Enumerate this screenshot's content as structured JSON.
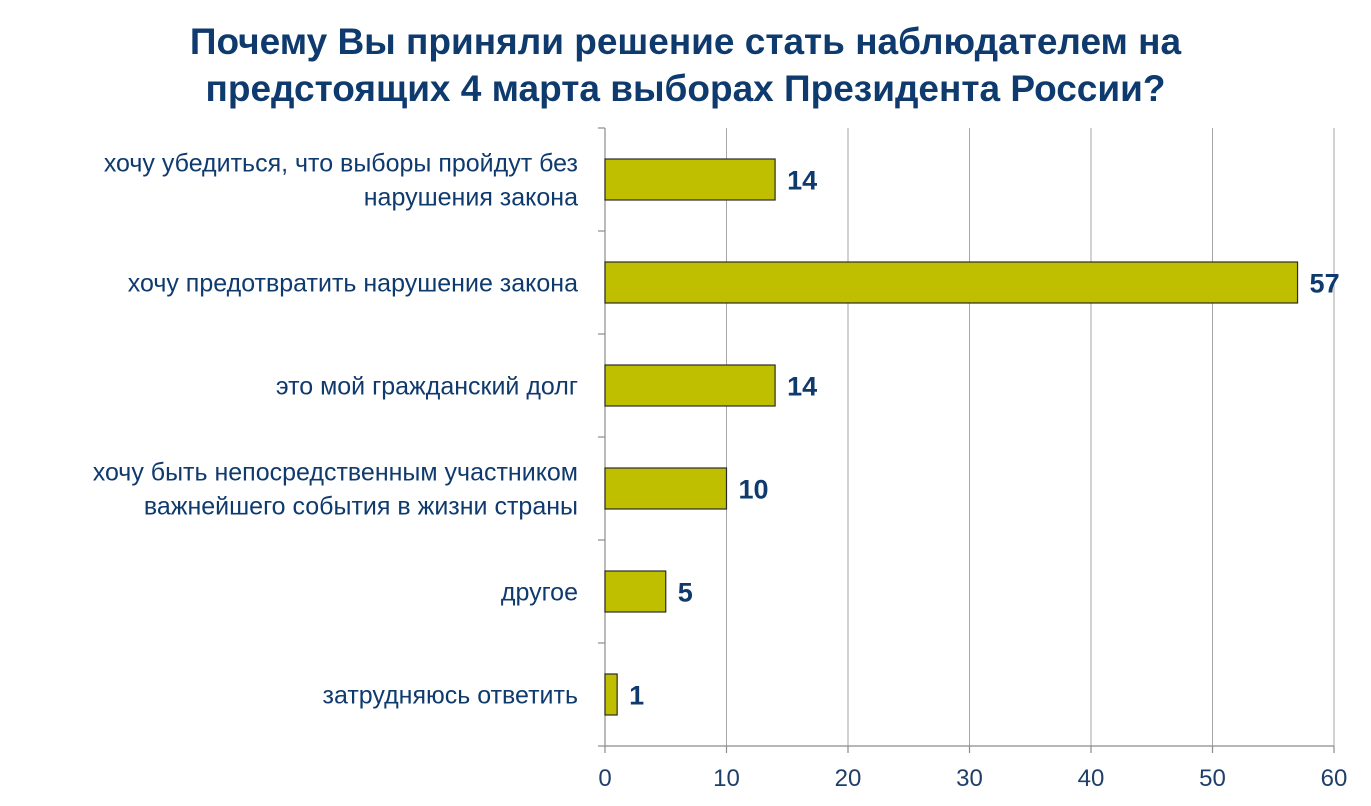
{
  "chart_data": {
    "type": "bar",
    "orientation": "horizontal",
    "title_lines": [
      "Почему Вы приняли решение стать наблюдателем на",
      "предстоящих 4 марта выборах Президента России?"
    ],
    "categories": [
      [
        "хочу убедиться, что выборы пройдут без",
        "нарушения закона"
      ],
      [
        "хочу предотвратить нарушение закона"
      ],
      [
        "это мой гражданский долг"
      ],
      [
        "хочу быть непосредственным участником",
        "важнейшего события в жизни страны"
      ],
      [
        "другое"
      ],
      [
        "затрудняюсь ответить"
      ]
    ],
    "values": [
      14,
      57,
      14,
      10,
      5,
      1
    ],
    "value_labels": [
      "14",
      "57",
      "14",
      "10",
      "5",
      "1"
    ],
    "xlim": [
      0,
      60
    ],
    "x_ticks": [
      0,
      10,
      20,
      30,
      40,
      50,
      60
    ],
    "x_tick_labels": [
      "0",
      "10",
      "20",
      "30",
      "40",
      "50",
      "60"
    ],
    "grid": "vertical",
    "legend": "none",
    "colors": {
      "bar_fill": "#bfbf00",
      "bar_stroke": "#2b2b2b",
      "title": "#0f3a6e",
      "category_label": "#0f3a6e",
      "value_label": "#0f3a6e",
      "tick_label": "#1f3f6a",
      "grid": "#a6a6a6",
      "axis": "#8c8c8c"
    }
  }
}
